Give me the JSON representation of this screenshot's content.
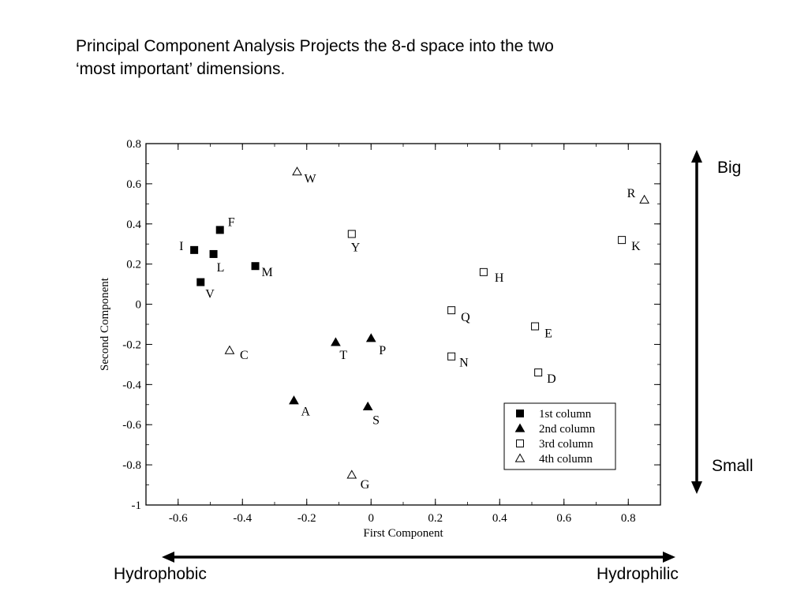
{
  "slide": {
    "title_line1": "Principal Component Analysis Projects the 8-d space into the two",
    "title_line2": "‘most important’ dimensions."
  },
  "annotations": {
    "big": "Big",
    "small": "Small",
    "hydrophobic": "Hydrophobic",
    "hydrophilic": "Hydrophilic"
  },
  "chart_data": {
    "type": "scatter",
    "title": "",
    "xlabel": "First Component",
    "ylabel": "Second Component",
    "xlim": [
      -0.7,
      0.9
    ],
    "ylim": [
      -1,
      0.8
    ],
    "xticks": [
      -0.6,
      -0.4,
      -0.2,
      0,
      0.2,
      0.4,
      0.6,
      0.8
    ],
    "xtick_labels": [
      "-0.6",
      "-0.4",
      "-0.2",
      "0",
      "0.2",
      "0.4",
      "0.6",
      "0.8"
    ],
    "yticks": [
      -1,
      -0.8,
      -0.6,
      -0.4,
      -0.2,
      0,
      0.2,
      0.4,
      0.6,
      0.8
    ],
    "ytick_labels": [
      "-1",
      "-0.8",
      "-0.6",
      "-0.4",
      "-0.2",
      "0",
      "0.2",
      "0.4",
      "0.6",
      "0.8"
    ],
    "grid": false,
    "legend_position": "bottom-right",
    "series": [
      {
        "name": "1st column",
        "marker": "square-filled",
        "points": [
          {
            "label": "F",
            "x": -0.47,
            "y": 0.37
          },
          {
            "label": "I",
            "x": -0.55,
            "y": 0.27
          },
          {
            "label": "L",
            "x": -0.49,
            "y": 0.25
          },
          {
            "label": "M",
            "x": -0.36,
            "y": 0.19
          },
          {
            "label": "V",
            "x": -0.53,
            "y": 0.11
          }
        ]
      },
      {
        "name": "2nd column",
        "marker": "triangle-filled",
        "points": [
          {
            "label": "T",
            "x": -0.11,
            "y": -0.19
          },
          {
            "label": "P",
            "x": 0.0,
            "y": -0.17
          },
          {
            "label": "A",
            "x": -0.24,
            "y": -0.48
          },
          {
            "label": "S",
            "x": -0.01,
            "y": -0.51
          }
        ]
      },
      {
        "name": "3rd column",
        "marker": "square-open",
        "points": [
          {
            "label": "Y",
            "x": -0.06,
            "y": 0.35
          },
          {
            "label": "K",
            "x": 0.78,
            "y": 0.32
          },
          {
            "label": "H",
            "x": 0.35,
            "y": 0.16
          },
          {
            "label": "Q",
            "x": 0.25,
            "y": -0.03
          },
          {
            "label": "E",
            "x": 0.51,
            "y": -0.11
          },
          {
            "label": "N",
            "x": 0.25,
            "y": -0.26
          },
          {
            "label": "D",
            "x": 0.52,
            "y": -0.34
          }
        ]
      },
      {
        "name": "4th column",
        "marker": "triangle-open",
        "points": [
          {
            "label": "W",
            "x": -0.23,
            "y": 0.66
          },
          {
            "label": "R",
            "x": 0.85,
            "y": 0.52
          },
          {
            "label": "C",
            "x": -0.44,
            "y": -0.23
          },
          {
            "label": "G",
            "x": -0.06,
            "y": -0.85
          }
        ]
      }
    ]
  }
}
